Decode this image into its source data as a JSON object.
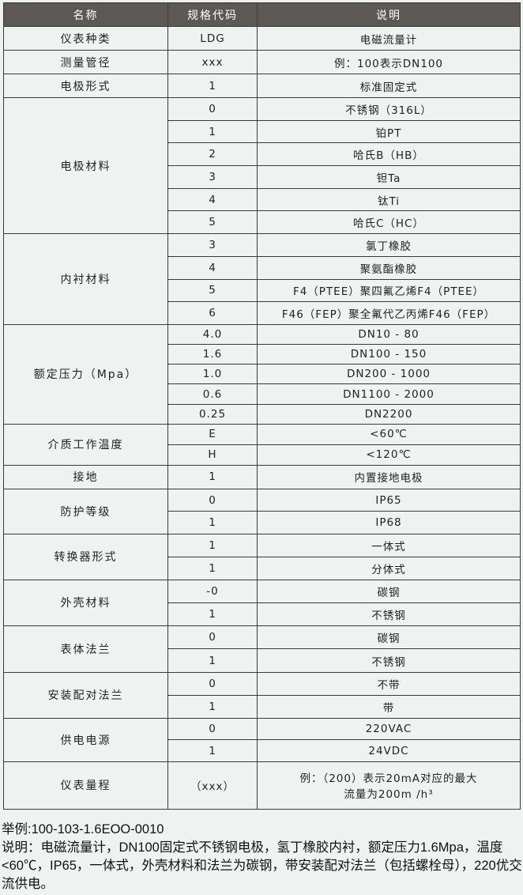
{
  "header": {
    "name": "名称",
    "code": "规格代码",
    "desc": "说明"
  },
  "colors": {
    "header_bg": "#5d5853",
    "page_bg": "#eef2f0"
  },
  "groups": [
    {
      "name": "仪表种类",
      "h": 30,
      "rows": [
        [
          "LDG",
          "电磁流量计"
        ]
      ]
    },
    {
      "name": "测量管径",
      "h": 30,
      "rows": [
        [
          "xxx",
          "例：100表示DN100"
        ]
      ]
    },
    {
      "name": "电极形式",
      "h": 30,
      "rows": [
        [
          "1",
          "标准固定式"
        ]
      ]
    },
    {
      "name": "电极材料",
      "h": 28.7,
      "rows": [
        [
          "0",
          "不锈钢（316L）"
        ],
        [
          "1",
          "铂PT"
        ],
        [
          "2",
          "哈氏B（HB）"
        ],
        [
          "3",
          "钽Ta"
        ],
        [
          "4",
          "钛Ti"
        ],
        [
          "5",
          "哈氏C（HC）"
        ]
      ]
    },
    {
      "name": "内衬材料",
      "h": 28.7,
      "rows": [
        [
          "3",
          "氯丁橡胶"
        ],
        [
          "4",
          "聚氨酯橡胶"
        ],
        [
          "5",
          "F4（PTEE）聚四氟乙烯F4（PTEE）"
        ],
        [
          "6",
          "F46（FEP）聚全氟代乙丙烯F46（FEP）"
        ]
      ]
    },
    {
      "name": "额定压力（Mpa）",
      "h": 25.2,
      "rows": [
        [
          "4.0",
          "DN10 - 80"
        ],
        [
          "1.6",
          "DN100 - 150"
        ],
        [
          "1.0",
          "DN200 - 1000"
        ],
        [
          "0.6",
          "DN1100 - 2000"
        ],
        [
          "0.25",
          "DN2200"
        ]
      ]
    },
    {
      "name": "介质工作温度",
      "h": 26,
      "rows": [
        [
          "E",
          "<60℃"
        ],
        [
          "H",
          "<120℃"
        ]
      ]
    },
    {
      "name": "接地",
      "h": 30,
      "rows": [
        [
          "1",
          "内置接地电极"
        ]
      ]
    },
    {
      "name": "防护等级",
      "h": 28.5,
      "rows": [
        [
          "0",
          "IP65"
        ],
        [
          "1",
          "IP68"
        ]
      ]
    },
    {
      "name": "转换器形式",
      "h": 29,
      "rows": [
        [
          "1",
          "一体式"
        ],
        [
          "1",
          "分体式"
        ]
      ]
    },
    {
      "name": "外壳材料",
      "h": 29,
      "rows": [
        [
          "-0",
          "碳钢"
        ],
        [
          "1",
          "不锈钢"
        ]
      ]
    },
    {
      "name": "表体法兰",
      "h": 29.5,
      "rows": [
        [
          "0",
          "碳钢"
        ],
        [
          "1",
          "不锈钢"
        ]
      ]
    },
    {
      "name": "安装配对法兰",
      "h": 29,
      "rows": [
        [
          "0",
          "不带"
        ],
        [
          "1",
          "带"
        ]
      ]
    },
    {
      "name": "供电电源",
      "h": 27.5,
      "rows": [
        [
          "0",
          "220VAC"
        ],
        [
          "1",
          "24VDC"
        ]
      ]
    },
    {
      "name": "仪表量程",
      "h": 60,
      "rows": [
        [
          "（xxx）",
          "例：（200）表示20mA对应的最大\n流量为200m  /h³"
        ]
      ]
    }
  ],
  "notes": {
    "example": "举例:100-103-1.6EOO-0010",
    "explanation": "说明：电磁流量计，DN100固定式不锈钢电极，氢丁橡胶内衬，额定压力1.6Mpa，温度<60℃，IP65，一体式，外壳材料和法兰为碳钢，带安装配对法兰（包括螺栓母），220优交流供电。"
  }
}
